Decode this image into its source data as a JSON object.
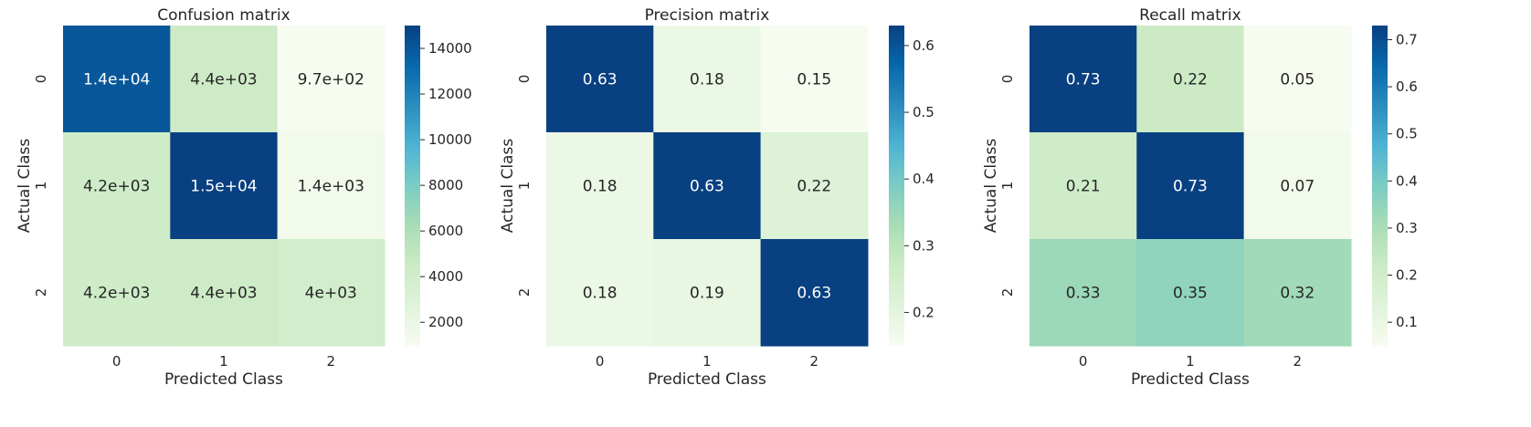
{
  "chart_data": [
    {
      "type": "heatmap",
      "title": "Confusion matrix",
      "xlabel": "Predicted Class",
      "ylabel": "Actual Class",
      "x_categories": [
        "0",
        "1",
        "2"
      ],
      "y_categories": [
        "0",
        "1",
        "2"
      ],
      "values": [
        [
          14000,
          4400,
          970
        ],
        [
          4200,
          15000,
          1400
        ],
        [
          4200,
          4400,
          4000
        ]
      ],
      "annotations": [
        [
          "1.4e+04",
          "4.4e+03",
          "9.7e+02"
        ],
        [
          "4.2e+03",
          "1.5e+04",
          "1.4e+03"
        ],
        [
          "4.2e+03",
          "4.4e+03",
          "4e+03"
        ]
      ],
      "colorbar": {
        "range": [
          970,
          15000
        ],
        "ticks": [
          2000,
          4000,
          6000,
          8000,
          10000,
          12000,
          14000
        ],
        "tick_labels": [
          "2000",
          "4000",
          "6000",
          "8000",
          "10000",
          "12000",
          "14000"
        ]
      },
      "colormap": "GnBu"
    },
    {
      "type": "heatmap",
      "title": "Precision matrix",
      "xlabel": "Predicted Class",
      "ylabel": "Actual Class",
      "x_categories": [
        "0",
        "1",
        "2"
      ],
      "y_categories": [
        "0",
        "1",
        "2"
      ],
      "values": [
        [
          0.63,
          0.18,
          0.15
        ],
        [
          0.18,
          0.63,
          0.22
        ],
        [
          0.18,
          0.19,
          0.63
        ]
      ],
      "annotations": [
        [
          "0.63",
          "0.18",
          "0.15"
        ],
        [
          "0.18",
          "0.63",
          "0.22"
        ],
        [
          "0.18",
          "0.19",
          "0.63"
        ]
      ],
      "colorbar": {
        "range": [
          0.15,
          0.63
        ],
        "ticks": [
          0.2,
          0.3,
          0.4,
          0.5,
          0.6
        ],
        "tick_labels": [
          "0.2",
          "0.3",
          "0.4",
          "0.5",
          "0.6"
        ]
      },
      "colormap": "GnBu"
    },
    {
      "type": "heatmap",
      "title": "Recall matrix",
      "xlabel": "Predicted Class",
      "ylabel": "Actual Class",
      "x_categories": [
        "0",
        "1",
        "2"
      ],
      "y_categories": [
        "0",
        "1",
        "2"
      ],
      "values": [
        [
          0.73,
          0.22,
          0.05
        ],
        [
          0.21,
          0.73,
          0.07
        ],
        [
          0.33,
          0.35,
          0.32
        ]
      ],
      "annotations": [
        [
          "0.73",
          "0.22",
          "0.05"
        ],
        [
          "0.21",
          "0.73",
          "0.07"
        ],
        [
          "0.33",
          "0.35",
          "0.32"
        ]
      ],
      "colorbar": {
        "range": [
          0.05,
          0.73
        ],
        "ticks": [
          0.1,
          0.2,
          0.3,
          0.4,
          0.5,
          0.6,
          0.7
        ],
        "tick_labels": [
          "0.1",
          "0.2",
          "0.3",
          "0.4",
          "0.5",
          "0.6",
          "0.7"
        ]
      },
      "colormap": "GnBu"
    }
  ],
  "colors": {
    "gnbu_stops": [
      "#f7fcf0",
      "#e0f3db",
      "#ccebc5",
      "#a8ddb5",
      "#7bccc4",
      "#4eb3d3",
      "#2b8cbe",
      "#0868ac",
      "#084081"
    ],
    "text_dark": "#262626",
    "text_light": "#ffffff"
  }
}
